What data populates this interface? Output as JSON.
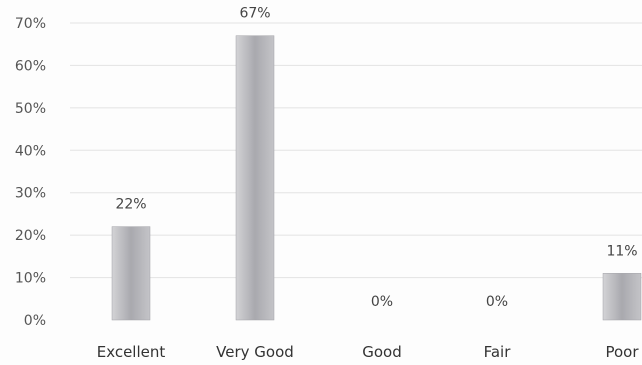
{
  "chart_data": {
    "type": "bar",
    "categories": [
      "Excellent",
      "Very Good",
      "Good",
      "Fair",
      "Poor"
    ],
    "values": [
      22,
      67,
      0,
      0,
      11
    ],
    "data_labels": [
      "22%",
      "67%",
      "0%",
      "0%",
      "11%"
    ],
    "ylim": [
      0,
      70
    ],
    "yticks": [
      0,
      10,
      20,
      30,
      40,
      50,
      60,
      70
    ],
    "ytick_labels": [
      "0%",
      "10%",
      "20%",
      "30%",
      "40%",
      "50%",
      "60%",
      "70%"
    ],
    "grid": true,
    "legend": "none",
    "bar_color": "#b3b3b8",
    "title": "",
    "xlabel": "",
    "ylabel": ""
  }
}
